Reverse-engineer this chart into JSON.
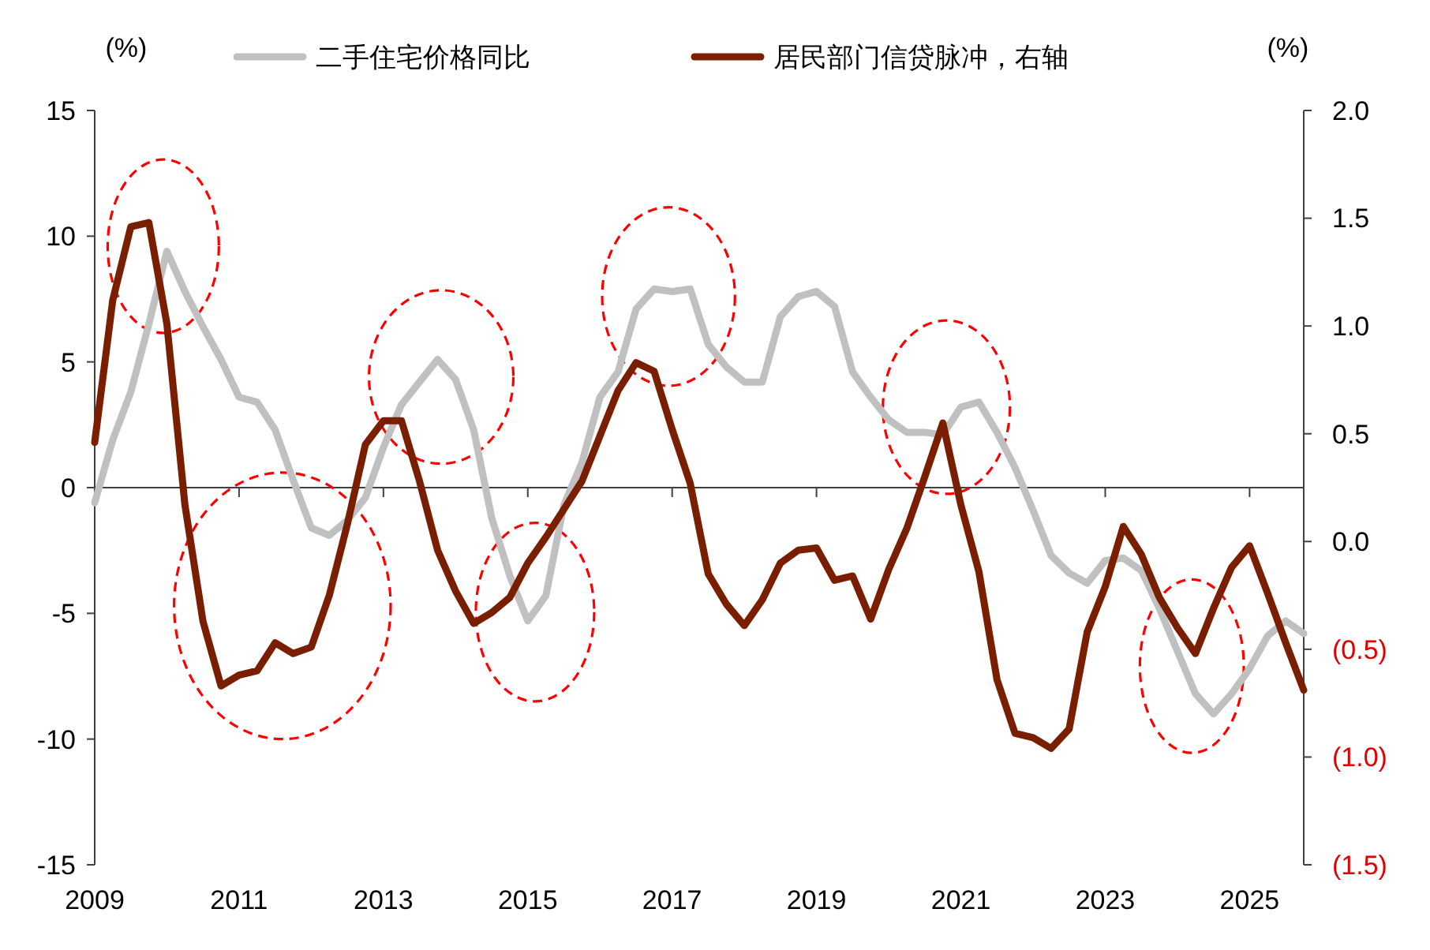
{
  "chart_data": {
    "type": "line",
    "ylabel": "(%)",
    "y2label": "(%)",
    "x": [
      2009,
      2009.25,
      2009.5,
      2009.75,
      2010,
      2010.25,
      2010.5,
      2010.75,
      2011,
      2011.25,
      2011.5,
      2011.75,
      2012,
      2012.25,
      2012.5,
      2012.75,
      2013,
      2013.25,
      2013.5,
      2013.75,
      2014,
      2014.25,
      2014.5,
      2014.75,
      2015,
      2015.25,
      2015.5,
      2015.75,
      2016,
      2016.25,
      2016.5,
      2016.75,
      2017,
      2017.25,
      2017.5,
      2017.75,
      2018,
      2018.25,
      2018.5,
      2018.75,
      2019,
      2019.25,
      2019.5,
      2019.75,
      2020,
      2020.25,
      2020.5,
      2020.75,
      2021,
      2021.25,
      2021.5,
      2021.75,
      2022,
      2022.25,
      2022.5,
      2022.75,
      2023,
      2023.25,
      2023.5,
      2023.75,
      2024,
      2024.25,
      2024.5,
      2024.75,
      2025,
      2025.25,
      2025.5,
      2025.75
    ],
    "series": [
      {
        "name": "二手住宅价格同比",
        "color": "#c0c0c0",
        "values": [
          -0.6,
          1.9,
          3.8,
          6.5,
          9.4,
          7.8,
          6.4,
          5.1,
          3.6,
          3.4,
          2.3,
          0.3,
          -1.6,
          -1.9,
          -1.3,
          -0.4,
          1.6,
          3.3,
          4.2,
          5.1,
          4.3,
          2.3,
          -1.2,
          -3.5,
          -5.3,
          -4.3,
          -0.7,
          1.0,
          3.6,
          4.6,
          7.1,
          7.9,
          7.8,
          7.9,
          5.7,
          4.8,
          4.2,
          4.2,
          6.8,
          7.6,
          7.8,
          7.2,
          4.6,
          3.6,
          2.7,
          2.2,
          2.2,
          2.1,
          3.2,
          3.4,
          2.2,
          0.8,
          -0.9,
          -2.7,
          -3.4,
          -3.8,
          -2.9,
          -2.8,
          -3.3,
          -4.8,
          -6.5,
          -8.2,
          -9.0,
          -8.2,
          -7.2,
          -5.9,
          -5.3,
          -5.8
        ]
      },
      {
        "name": "居民部门信贷脉冲，右轴",
        "color": "#7a1e00",
        "axis": "y2",
        "values": [
          0.46,
          1.12,
          1.46,
          1.48,
          1.01,
          0.17,
          -0.37,
          -0.67,
          -0.62,
          -0.6,
          -0.47,
          -0.52,
          -0.49,
          -0.25,
          0.08,
          0.45,
          0.56,
          0.56,
          0.28,
          -0.04,
          -0.23,
          -0.38,
          -0.33,
          -0.26,
          -0.1,
          0.02,
          0.15,
          0.28,
          0.49,
          0.7,
          0.83,
          0.79,
          0.52,
          0.27,
          -0.15,
          -0.29,
          -0.39,
          -0.27,
          -0.1,
          -0.04,
          -0.03,
          -0.18,
          -0.16,
          -0.36,
          -0.13,
          0.06,
          0.3,
          0.55,
          0.17,
          -0.14,
          -0.64,
          -0.89,
          -0.91,
          -0.96,
          -0.87,
          -0.42,
          -0.21,
          0.07,
          -0.06,
          -0.26,
          -0.4,
          -0.52,
          -0.31,
          -0.12,
          -0.02,
          -0.24,
          -0.47,
          -0.69
        ]
      }
    ],
    "xlim": [
      2009,
      2025.75
    ],
    "xticks": [
      2009,
      2011,
      2013,
      2015,
      2017,
      2019,
      2021,
      2023,
      2025
    ],
    "ylim": [
      -15,
      15
    ],
    "yticks": [
      -15,
      -10,
      -5,
      0,
      5,
      10,
      15
    ],
    "y2lim": [
      -1.5,
      2
    ],
    "y2ticks": [
      {
        "value": -1.5,
        "label": "(1.5)"
      },
      {
        "value": -1,
        "label": "(1.0)"
      },
      {
        "value": -0.5,
        "label": "(0.5)"
      },
      {
        "value": 0,
        "label": "0.0"
      },
      {
        "value": 0.5,
        "label": "0.5"
      },
      {
        "value": 1,
        "label": "1.0"
      },
      {
        "value": 1.5,
        "label": "1.5"
      },
      {
        "value": 2,
        "label": "2.0"
      }
    ],
    "legend": "top"
  }
}
